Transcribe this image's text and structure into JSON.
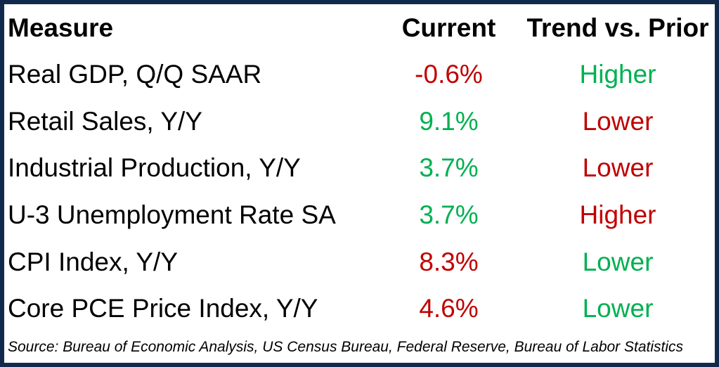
{
  "chart_data": {
    "type": "table",
    "columns": [
      "Measure",
      "Current",
      "Trend vs. Prior"
    ],
    "rows": [
      {
        "measure": "Real GDP, Q/Q SAAR",
        "current": "-0.6%",
        "current_color": "#C00000",
        "trend": "Higher",
        "trend_color": "#00B050"
      },
      {
        "measure": "Retail Sales, Y/Y",
        "current": "9.1%",
        "current_color": "#00B050",
        "trend": "Lower",
        "trend_color": "#C00000"
      },
      {
        "measure": "Industrial Production, Y/Y",
        "current": "3.7%",
        "current_color": "#00B050",
        "trend": "Lower",
        "trend_color": "#C00000"
      },
      {
        "measure": "U-3 Unemployment Rate SA",
        "current": "3.7%",
        "current_color": "#00B050",
        "trend": "Higher",
        "trend_color": "#C00000"
      },
      {
        "measure": "CPI Index, Y/Y",
        "current": "8.3%",
        "current_color": "#C00000",
        "trend": "Lower",
        "trend_color": "#00B050"
      },
      {
        "measure": "Core PCE Price Index, Y/Y",
        "current": "4.6%",
        "current_color": "#C00000",
        "trend": "Lower",
        "trend_color": "#00B050"
      }
    ],
    "source_note": "Source: Bureau of Economic Analysis, US Census Bureau, Federal Reserve, Bureau of Labor Statistics",
    "layout_hints": "white background, no internal gridlines, thick dark navy outer border, first column left-aligned, value columns centered"
  },
  "colors": {
    "negative_red": "#C00000",
    "positive_green": "#00B050",
    "border_navy": "#12294E",
    "text_black": "#000000"
  }
}
